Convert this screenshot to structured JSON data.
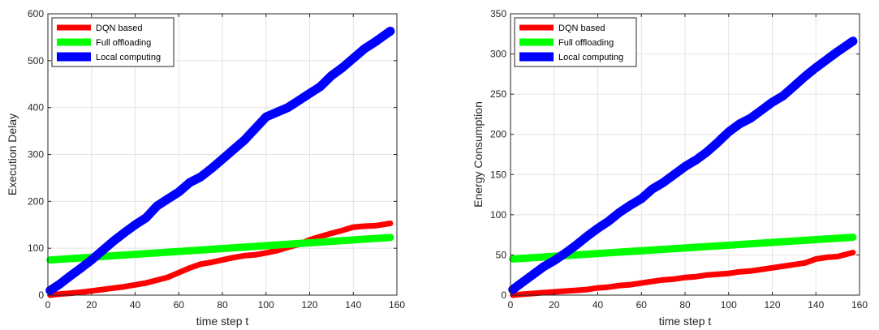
{
  "chart_data": [
    {
      "type": "line",
      "xlabel": "time step t",
      "ylabel": "Execution Delay",
      "xlim": [
        0,
        160
      ],
      "ylim": [
        0,
        600
      ],
      "xticks": [
        0,
        20,
        40,
        60,
        80,
        100,
        120,
        140,
        160
      ],
      "yticks": [
        0,
        100,
        200,
        300,
        400,
        500,
        600
      ],
      "grid": true,
      "legend_position": "top-left",
      "series": [
        {
          "name": "DQN based",
          "color": "#ff0000",
          "x": [
            1,
            5,
            10,
            15,
            20,
            25,
            30,
            35,
            40,
            45,
            50,
            55,
            60,
            65,
            70,
            75,
            80,
            85,
            90,
            95,
            100,
            105,
            110,
            115,
            120,
            125,
            130,
            135,
            140,
            145,
            150,
            157
          ],
          "y": [
            0,
            2,
            4,
            6,
            9,
            12,
            15,
            18,
            22,
            26,
            32,
            38,
            48,
            58,
            66,
            70,
            75,
            80,
            84,
            86,
            90,
            95,
            102,
            108,
            118,
            125,
            132,
            138,
            145,
            147,
            148,
            153
          ]
        },
        {
          "name": "Full offloading",
          "color": "#00ff00",
          "x": [
            1,
            157
          ],
          "y": [
            75,
            123
          ]
        },
        {
          "name": "Local computing",
          "color": "#0000ff",
          "x": [
            1,
            5,
            10,
            15,
            20,
            25,
            30,
            35,
            40,
            45,
            50,
            55,
            60,
            65,
            70,
            75,
            80,
            85,
            90,
            95,
            100,
            105,
            110,
            115,
            120,
            125,
            130,
            135,
            140,
            145,
            150,
            157
          ],
          "y": [
            10,
            22,
            40,
            57,
            75,
            95,
            115,
            133,
            150,
            165,
            190,
            205,
            220,
            240,
            252,
            270,
            290,
            310,
            330,
            355,
            380,
            390,
            400,
            415,
            430,
            445,
            468,
            485,
            505,
            525,
            540,
            563
          ]
        }
      ]
    },
    {
      "type": "line",
      "xlabel": "time step t",
      "ylabel": "Energy Consumption",
      "xlim": [
        0,
        160
      ],
      "ylim": [
        0,
        350
      ],
      "xticks": [
        0,
        20,
        40,
        60,
        80,
        100,
        120,
        140,
        160
      ],
      "yticks": [
        0,
        50,
        100,
        150,
        200,
        250,
        300,
        350
      ],
      "grid": true,
      "legend_position": "top-left",
      "series": [
        {
          "name": "DQN based",
          "color": "#ff0000",
          "x": [
            1,
            5,
            10,
            15,
            20,
            25,
            30,
            35,
            40,
            45,
            50,
            55,
            60,
            65,
            70,
            75,
            80,
            85,
            90,
            95,
            100,
            105,
            110,
            115,
            120,
            125,
            130,
            135,
            140,
            145,
            150,
            157
          ],
          "y": [
            0,
            1,
            2,
            3,
            4,
            5,
            6,
            7,
            9,
            10,
            12,
            13,
            15,
            17,
            19,
            20,
            22,
            23,
            25,
            26,
            27,
            29,
            30,
            32,
            34,
            36,
            38,
            40,
            45,
            47,
            48,
            53
          ]
        },
        {
          "name": "Full offloading",
          "color": "#00ff00",
          "x": [
            1,
            157
          ],
          "y": [
            45,
            72
          ]
        },
        {
          "name": "Local computing",
          "color": "#0000ff",
          "x": [
            1,
            5,
            10,
            15,
            20,
            25,
            30,
            35,
            40,
            45,
            50,
            55,
            60,
            65,
            70,
            75,
            80,
            85,
            90,
            95,
            100,
            105,
            110,
            115,
            120,
            125,
            130,
            135,
            140,
            145,
            150,
            157
          ],
          "y": [
            7,
            15,
            25,
            35,
            43,
            52,
            62,
            73,
            83,
            92,
            103,
            112,
            120,
            132,
            140,
            150,
            160,
            168,
            178,
            190,
            203,
            213,
            220,
            230,
            240,
            248,
            260,
            272,
            283,
            293,
            303,
            316
          ]
        }
      ]
    }
  ]
}
